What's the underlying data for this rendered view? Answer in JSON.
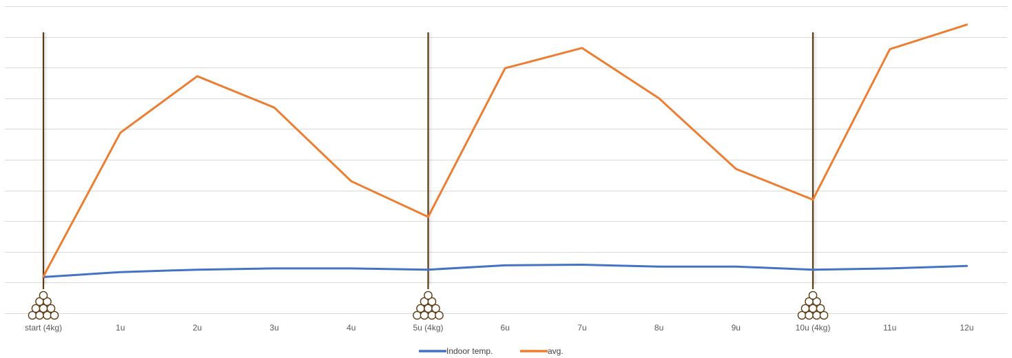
{
  "chart_data": {
    "type": "line",
    "categories": [
      "start (4kg)",
      "1u",
      "2u",
      "3u",
      "4u",
      "5u (4kg)",
      "6u",
      "7u",
      "8u",
      "9u",
      "10u (4kg)",
      "11u",
      "12u"
    ],
    "series": [
      {
        "name": "Indoor temp.",
        "color": "#4472C4",
        "values": [
          0.9,
          1.7,
          2.1,
          2.3,
          2.3,
          2.1,
          2.8,
          2.9,
          2.6,
          2.6,
          2.1,
          2.3,
          2.7
        ]
      },
      {
        "name": "avg.",
        "color": "#ED7D31",
        "values": [
          1.0,
          24.4,
          33.6,
          28.5,
          16.5,
          10.7,
          34.9,
          38.2,
          30.0,
          18.5,
          13.5,
          38.0,
          42.0
        ]
      }
    ],
    "ylim": [
      -5,
      45
    ],
    "y_tick_labels_shown": false,
    "grid": true,
    "legend": "bottom",
    "event_markers": [
      {
        "category": "start (4kg)",
        "icon": "firewood-icon"
      },
      {
        "category": "5u (4kg)",
        "icon": "firewood-icon"
      },
      {
        "category": "10u (4kg)",
        "icon": "firewood-icon"
      }
    ],
    "marker_color": "#5C3A13"
  }
}
